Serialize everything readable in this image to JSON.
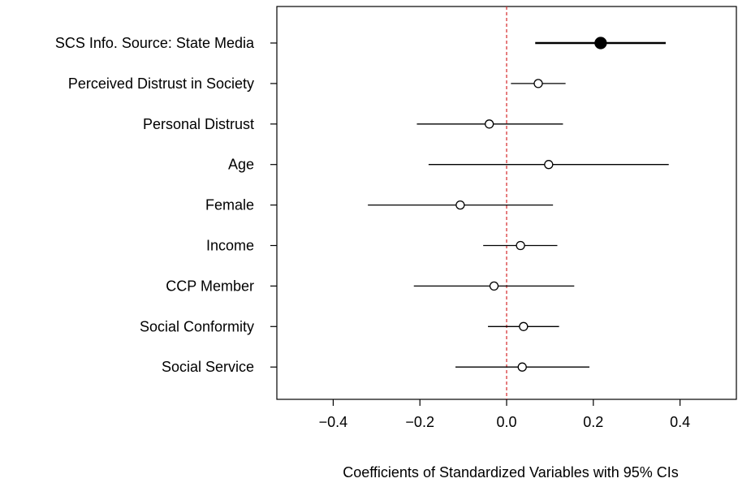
{
  "chart_data": {
    "type": "scatter",
    "subtype": "coefficient-plot",
    "xlabel": "Coefficients of Standardized Variables with 95% CIs",
    "xlim": [
      -0.53,
      0.53
    ],
    "xticks": [
      -0.4,
      -0.2,
      0.0,
      0.2,
      0.4
    ],
    "xtick_labels": [
      "−0.4",
      "−0.2",
      "0.0",
      "0.2",
      "0.4"
    ],
    "reference_line": {
      "x": 0,
      "color": "#d62728",
      "style": "dashed"
    },
    "grid": false,
    "points": [
      {
        "label": "SCS Info. Source: State Media",
        "estimate": 0.217,
        "lower": 0.066,
        "upper": 0.367,
        "highlight": true
      },
      {
        "label": "Perceived Distrust in Society",
        "estimate": 0.073,
        "lower": 0.01,
        "upper": 0.136,
        "highlight": false
      },
      {
        "label": "Personal Distrust",
        "estimate": -0.04,
        "lower": -0.207,
        "upper": 0.13,
        "highlight": false
      },
      {
        "label": "Age",
        "estimate": 0.097,
        "lower": -0.18,
        "upper": 0.374,
        "highlight": false
      },
      {
        "label": "Female",
        "estimate": -0.107,
        "lower": -0.32,
        "upper": 0.107,
        "highlight": false
      },
      {
        "label": "Income",
        "estimate": 0.032,
        "lower": -0.054,
        "upper": 0.117,
        "highlight": false
      },
      {
        "label": "CCP Member",
        "estimate": -0.029,
        "lower": -0.214,
        "upper": 0.156,
        "highlight": false
      },
      {
        "label": "Social Conformity",
        "estimate": 0.039,
        "lower": -0.043,
        "upper": 0.121,
        "highlight": false
      },
      {
        "label": "Social Service",
        "estimate": 0.036,
        "lower": -0.118,
        "upper": 0.191,
        "highlight": false
      }
    ]
  }
}
